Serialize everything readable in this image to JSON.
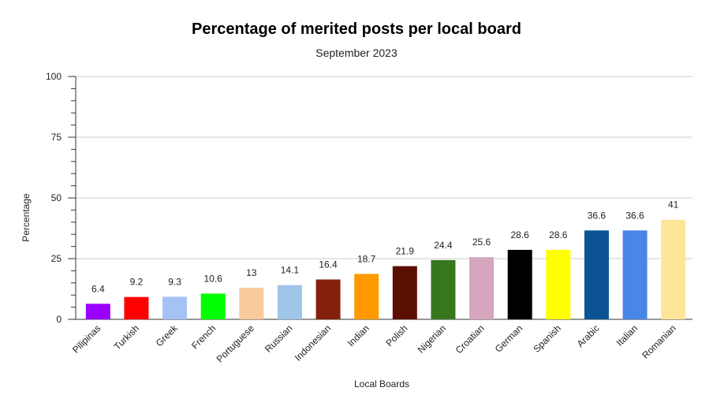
{
  "chart_data": {
    "type": "bar",
    "title": "Percentage of merited posts per local board",
    "subtitle": "September 2023",
    "xlabel": "Local Boards",
    "ylabel": "Percentage",
    "ylim": [
      0,
      100
    ],
    "yticks": [
      0,
      25,
      50,
      75,
      100
    ],
    "grid": true,
    "legend": "none",
    "categories": [
      "Pilipinas",
      "Turkish",
      "Greek",
      "French",
      "Portuguese",
      "Russian",
      "Indonesian",
      "Indian",
      "Polish",
      "Nigerian",
      "Croatian",
      "German",
      "Spanish",
      "Arabic",
      "Italian",
      "Romanian"
    ],
    "values": [
      6.4,
      9.2,
      9.3,
      10.6,
      13,
      14.1,
      16.4,
      18.7,
      21.9,
      24.4,
      25.6,
      28.6,
      28.6,
      36.6,
      36.6,
      41
    ],
    "colors": [
      "#9900ff",
      "#ff0000",
      "#a4c2f4",
      "#00ff00",
      "#f9cb9c",
      "#9fc5e8",
      "#85200c",
      "#ff9900",
      "#5b0f00",
      "#38761d",
      "#d5a6bd",
      "#000000",
      "#ffff00",
      "#0b5394",
      "#4a86e8",
      "#ffe599"
    ]
  }
}
